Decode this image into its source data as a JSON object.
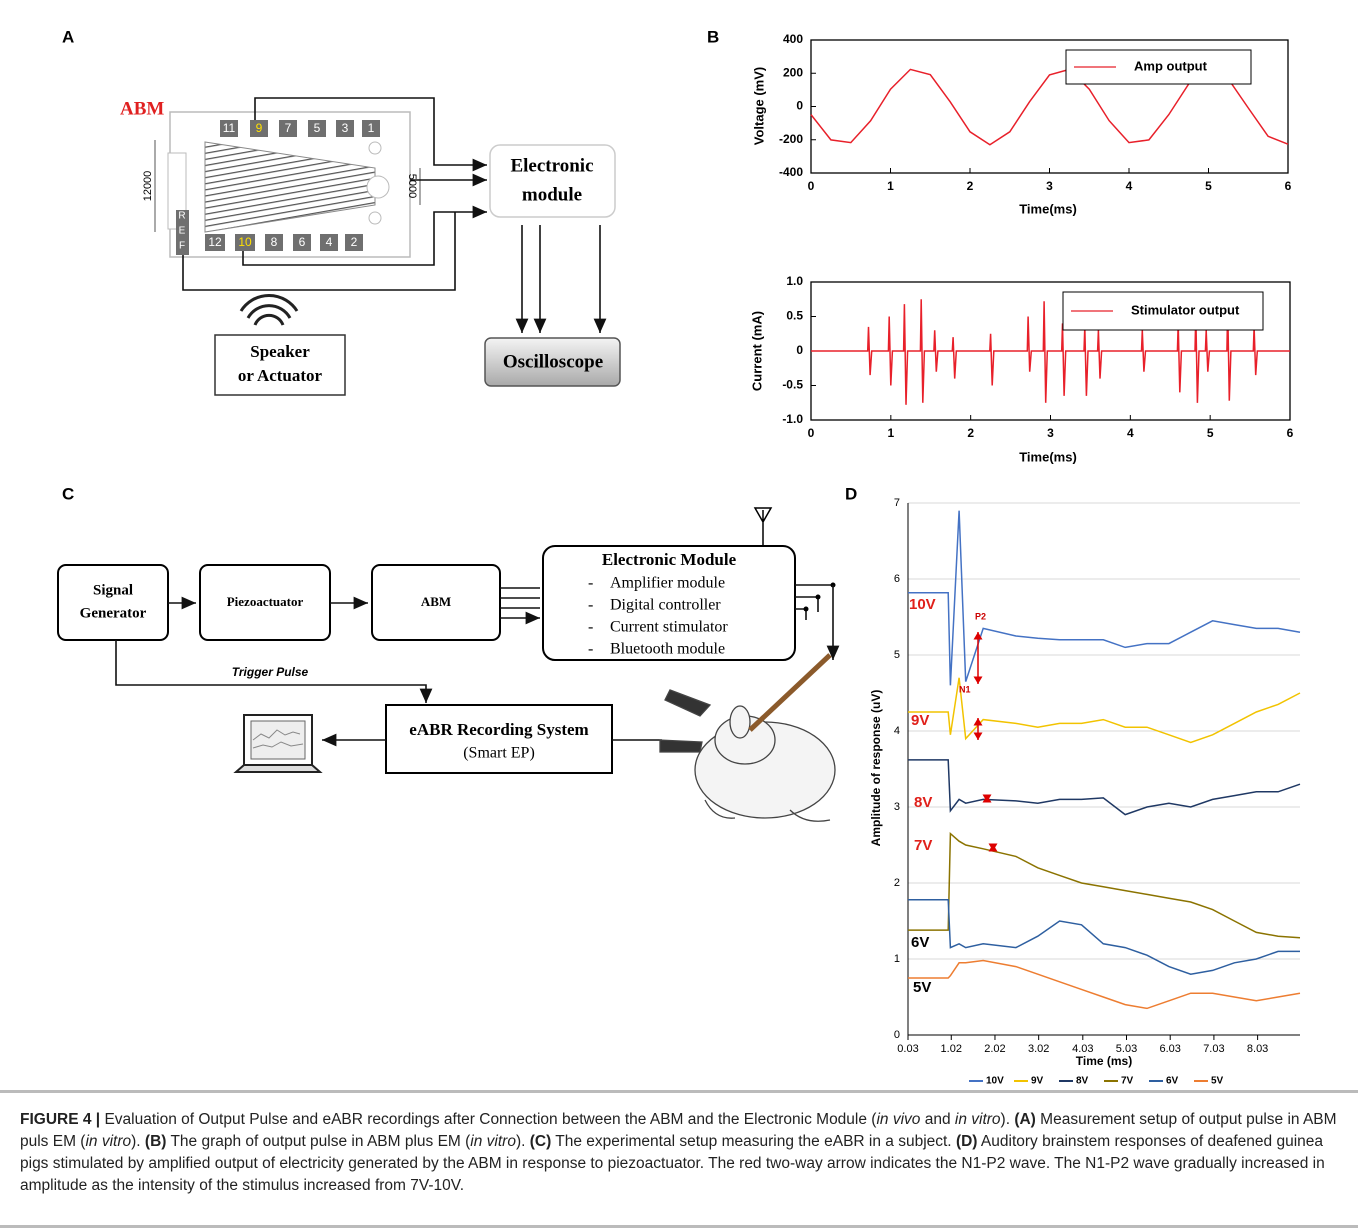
{
  "figure": {
    "panels": {
      "a": "A",
      "b": "B",
      "c": "C",
      "d": "D"
    }
  },
  "diagram_a": {
    "abm_label": "ABM",
    "top_pins": [
      "11",
      "9",
      "7",
      "5",
      "3",
      "1"
    ],
    "bottom_pins": [
      "12",
      "10",
      "8",
      "6",
      "4",
      "2"
    ],
    "ref": [
      "R",
      "E",
      "F"
    ],
    "dim_left": "12000",
    "dim_right": "5000",
    "electronic_module": [
      "Electronic",
      "module"
    ],
    "speaker": [
      "Speaker",
      "or Actuator"
    ],
    "oscilloscope": "Oscilloscope"
  },
  "diagram_c": {
    "signal_generator": [
      "Signal",
      "Generator"
    ],
    "piezoactuator": "Piezoactuator",
    "abm": "ABM",
    "electronic_module": {
      "title": "Electronic Module",
      "items": [
        "Amplifier module",
        "Digital controller",
        "Current stimulator",
        "Bluetooth module"
      ],
      "bullet": "-"
    },
    "trigger": "Trigger Pulse",
    "recording": [
      "eABR Recording System",
      "(Smart EP)"
    ]
  },
  "chart_data": [
    {
      "type": "line",
      "x_label": "Time(ms)",
      "y_label": "Voltage  (mV)",
      "x": [
        0,
        0.25,
        0.5,
        0.75,
        1,
        1.25,
        1.5,
        1.75,
        2,
        2.25,
        2.5,
        2.75,
        3,
        3.25,
        3.5,
        3.75,
        4,
        4.25,
        4.5,
        4.75,
        5,
        5.25,
        5.5,
        5.75,
        6
      ],
      "series": [
        {
          "name": "Amp output",
          "color": "#e8202a",
          "values": [
            -49,
            -201,
            -217,
            -86,
            104,
            223,
            191,
            29,
            -152,
            -230,
            -152,
            29,
            190,
            223,
            104,
            -85,
            -217,
            -201,
            -49,
            135,
            230,
            165,
            -9,
            -179,
            -227
          ]
        }
      ],
      "xlim": [
        0,
        6
      ],
      "xticks": [
        0,
        1,
        2,
        3,
        4,
        5,
        6
      ],
      "ylim": [
        -400,
        400
      ],
      "yticks": [
        -400,
        -200,
        0,
        200,
        400
      ],
      "legend": "upper right",
      "frame": true,
      "grid": false
    },
    {
      "type": "line",
      "x_label": "Time(ms)",
      "y_label": "Current  (mA)",
      "x": [
        0,
        0.71,
        0.72,
        0.74,
        0.76,
        0.97,
        0.98,
        1.0,
        1.02,
        1.16,
        1.17,
        1.19,
        1.21,
        1.37,
        1.38,
        1.4,
        1.42,
        1.54,
        1.55,
        1.57,
        1.59,
        1.77,
        1.78,
        1.8,
        1.82,
        2.24,
        2.25,
        2.27,
        2.29,
        2.71,
        2.72,
        2.74,
        2.76,
        2.91,
        2.92,
        2.94,
        2.96,
        3.14,
        3.15,
        3.17,
        3.19,
        3.42,
        3.43,
        3.45,
        3.47,
        3.59,
        3.6,
        3.62,
        3.64,
        4.14,
        4.15,
        4.17,
        4.19,
        4.59,
        4.6,
        4.62,
        4.64,
        4.81,
        4.82,
        4.84,
        4.86,
        4.94,
        4.95,
        4.97,
        4.99,
        5.21,
        5.22,
        5.24,
        5.26,
        5.54,
        5.55,
        5.57,
        5.59,
        6
      ],
      "series": [
        {
          "name": "Stimulator output",
          "color": "#e8202a",
          "values": [
            0,
            0,
            0.35,
            -0.35,
            0,
            0,
            0.5,
            -0.5,
            0,
            0,
            0.68,
            -0.78,
            0,
            0,
            0.75,
            -0.75,
            0,
            0,
            0.3,
            -0.3,
            0,
            0,
            0.2,
            -0.4,
            0,
            0,
            0.25,
            -0.5,
            0,
            0,
            0.5,
            -0.3,
            0,
            0,
            0.72,
            -0.75,
            0,
            0,
            0.4,
            -0.65,
            0,
            0,
            0.35,
            -0.65,
            0,
            0,
            0.3,
            -0.4,
            0,
            0,
            0.3,
            -0.3,
            0,
            0,
            0.4,
            -0.6,
            0,
            0,
            0.55,
            -0.75,
            0,
            0,
            0.3,
            -0.3,
            0,
            0,
            0.65,
            -0.72,
            0,
            0,
            0.35,
            -0.35,
            0,
            0
          ]
        }
      ],
      "xlim": [
        0,
        6
      ],
      "xticks": [
        0,
        1,
        2,
        3,
        4,
        5,
        6
      ],
      "ylim": [
        -1,
        1
      ],
      "yticks": [
        {
          "value": -1,
          "label": "-1.0"
        },
        -0.5,
        0,
        0.5,
        {
          "value": 1,
          "label": "1.0"
        }
      ],
      "legend": "upper right",
      "frame": true,
      "grid": false
    },
    {
      "type": "line",
      "x_label": "Time (ms)",
      "y_label": "Amplitude of response (uV)",
      "annotations": [
        "10V",
        "9V",
        "8V",
        "7V",
        "6V",
        "5V",
        "N1",
        "P2"
      ],
      "x": [
        0.03,
        0.5,
        0.95,
        1.0,
        1.2,
        1.35,
        1.75,
        2.5,
        3,
        3.5,
        4,
        4.5,
        5,
        5.5,
        6,
        6.5,
        7,
        7.5,
        8,
        8.5,
        9
      ],
      "series": [
        {
          "name": "10V",
          "color": "#4472c4",
          "values": [
            5.82,
            5.82,
            5.82,
            4.6,
            6.9,
            4.65,
            5.35,
            5.25,
            5.22,
            5.2,
            5.2,
            5.2,
            5.1,
            5.15,
            5.15,
            5.3,
            5.45,
            5.4,
            5.35,
            5.35,
            5.3
          ]
        },
        {
          "name": "9V",
          "color": "#f2c300",
          "values": [
            4.25,
            4.25,
            4.25,
            3.95,
            4.7,
            3.9,
            4.15,
            4.1,
            4.05,
            4.1,
            4.1,
            4.15,
            4.05,
            4.05,
            3.95,
            3.85,
            3.95,
            4.1,
            4.25,
            4.35,
            4.5
          ]
        },
        {
          "name": "8V",
          "color": "#1f3864",
          "values": [
            3.62,
            3.62,
            3.62,
            2.95,
            3.1,
            3.05,
            3.1,
            3.08,
            3.05,
            3.1,
            3.1,
            3.12,
            2.9,
            3.0,
            3.05,
            3.0,
            3.1,
            3.15,
            3.2,
            3.2,
            3.3
          ]
        },
        {
          "name": "7V",
          "color": "#8b7300",
          "values": [
            1.38,
            1.38,
            1.38,
            2.65,
            2.55,
            2.5,
            2.45,
            2.35,
            2.2,
            2.1,
            2.0,
            1.95,
            1.9,
            1.85,
            1.8,
            1.75,
            1.65,
            1.5,
            1.35,
            1.3,
            1.28
          ]
        },
        {
          "name": "6V",
          "color": "#2e5fa0",
          "values": [
            1.78,
            1.78,
            1.78,
            1.15,
            1.2,
            1.15,
            1.2,
            1.15,
            1.3,
            1.5,
            1.45,
            1.2,
            1.15,
            1.05,
            0.9,
            0.8,
            0.85,
            0.95,
            1.0,
            1.1,
            1.1
          ]
        },
        {
          "name": "5V",
          "color": "#ed7d31",
          "values": [
            0.75,
            0.75,
            0.75,
            0.78,
            0.95,
            0.95,
            0.98,
            0.9,
            0.8,
            0.7,
            0.6,
            0.5,
            0.4,
            0.35,
            0.45,
            0.55,
            0.55,
            0.5,
            0.45,
            0.5,
            0.55
          ]
        }
      ],
      "xlim": [
        0.03,
        9
      ],
      "xticks": [
        0.03,
        1.02,
        2.02,
        3.02,
        4.03,
        5.03,
        6.03,
        7.03,
        8.03
      ],
      "ylim": [
        0,
        7
      ],
      "yticks": [
        0,
        1,
        2,
        3,
        4,
        5,
        6,
        7
      ],
      "legend": "bottom",
      "frame": false,
      "grid": true
    }
  ],
  "caption": {
    "parts": [
      "FIGURE 4 |",
      " Evaluation of Output Pulse and eABR recordings after Connection between the ABM and the Electronic Module (",
      "in vivo",
      " and ",
      "in vitro",
      "). ",
      "(A)",
      " Measurement setup of output pulse in ABM puls EM (",
      "in vitro",
      "). ",
      "(B)",
      " The graph of output pulse in ABM plus EM (",
      "in vitro",
      "). ",
      "(C)",
      " The experimental setup measuring the eABR in a subject. ",
      "(D)",
      " Auditory brainstem responses of deafened guinea pigs stimulated by amplified output of electricity generated by the ABM in response to piezoactuator. The red two-way arrow indicates the N1-P2 wave. The N1-P2 wave gradually increased in amplitude as the intensity of the stimulus increased from 7V-10V."
    ]
  }
}
